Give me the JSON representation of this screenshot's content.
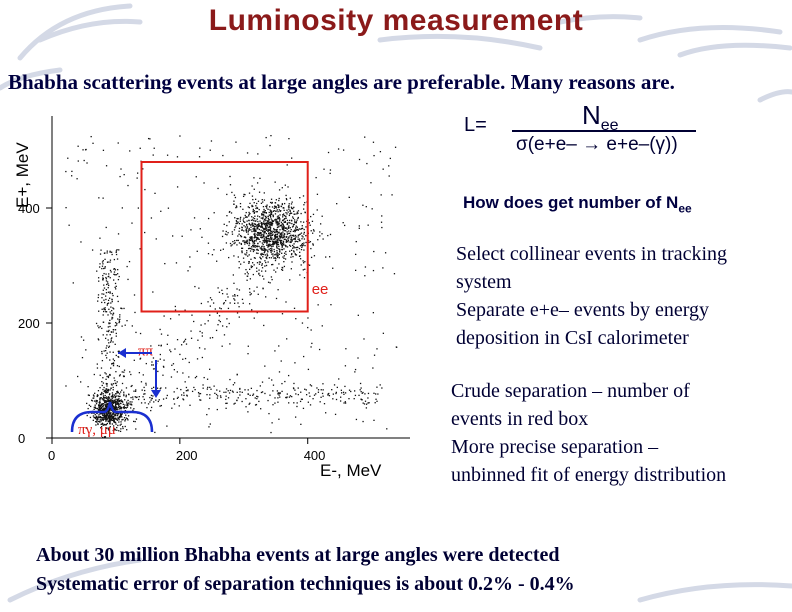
{
  "slide": {
    "title": "Luminosity measurement",
    "subtitle": "Bhabha scattering events at large angles are preferable. Many reasons are.",
    "formula": {
      "lhs": "L=",
      "numerator": "N",
      "numerator_sub": "ee",
      "denominator": "σ(e+e– → e+e–(γ))"
    },
    "question": "How does get number  of N",
    "question_sub": "ee",
    "paragraph1": [
      "Select collinear events in tracking",
      "system",
      "Separate e+e– events by energy",
      "deposition in CsI calorimeter"
    ],
    "paragraph2": [
      "Crude separation – number of",
      "events in red box",
      "More precise separation –",
      "unbinned fit of energy distribution"
    ],
    "bottom_lines": [
      "About 30 million Bhabha events at large angles were detected",
      "Systematic error of separation techniques is about 0.2% - 0.4%"
    ]
  },
  "chart_data": {
    "type": "scatter",
    "title": "",
    "xlabel": "E-, MeV",
    "ylabel": "E+, MeV",
    "xlim": [
      0,
      560
    ],
    "ylim": [
      0,
      560
    ],
    "x_ticks": [
      0,
      200,
      400
    ],
    "y_ticks": [
      0,
      200,
      400
    ],
    "x_tick_labels": [
      "0",
      "200",
      "400"
    ],
    "y_tick_labels": [
      "0",
      "200",
      "400"
    ],
    "grid": false,
    "box": {
      "x_range": [
        140,
        400
      ],
      "y_range": [
        220,
        480
      ],
      "label": "ee",
      "color": "#e0201a"
    },
    "clusters": [
      {
        "label": "ee",
        "center": [
          340,
          360
        ],
        "spread": [
          30,
          28
        ]
      },
      {
        "label": "ππ",
        "center": [
          125,
          175
        ],
        "spread": [
          0,
          0
        ]
      },
      {
        "label": "πγ, μμ",
        "center": [
          90,
          50
        ],
        "spread": [
          14,
          16
        ]
      }
    ],
    "annotations": [
      {
        "text": "ee",
        "color": "#e0201a"
      },
      {
        "text": "ππ",
        "color": "#e0201a"
      },
      {
        "text": "πγ, μμ",
        "color": "#e0201a"
      }
    ],
    "accent_color": "#1a2fd0"
  }
}
